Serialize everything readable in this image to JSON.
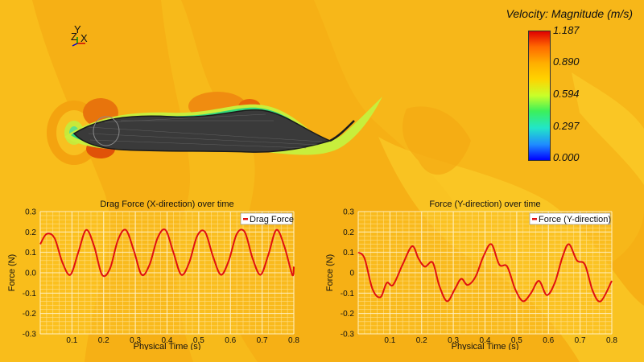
{
  "legend": {
    "title": "Velocity: Magnitude (m/s)",
    "ticks": [
      "1.187",
      "0.890",
      "0.594",
      "0.297",
      "0.000"
    ]
  },
  "axis_triad": {
    "labels": [
      "Y",
      "Z",
      "X"
    ]
  },
  "chart_data": [
    {
      "type": "line",
      "title": "Drag Force (X-direction) over time",
      "xlabel": "Physical Time (s)",
      "ylabel": "Force (N)",
      "xlim": [
        0,
        0.8
      ],
      "ylim": [
        -0.3,
        0.3
      ],
      "xticks": [
        "0.1",
        "0.2",
        "0.3",
        "0.4",
        "0.5",
        "0.6",
        "0.7",
        "0.8"
      ],
      "yticks": [
        "0.3",
        "0.2",
        "0.1",
        "0.0",
        "-0.1",
        "-0.2",
        "-0.3"
      ],
      "legend_position": "top-right",
      "grid": true,
      "series": [
        {
          "name": "Drag Force",
          "color": "#e01010",
          "x": [
            0.0,
            0.02,
            0.045,
            0.07,
            0.095,
            0.12,
            0.145,
            0.17,
            0.195,
            0.22,
            0.245,
            0.27,
            0.295,
            0.32,
            0.345,
            0.37,
            0.395,
            0.42,
            0.445,
            0.47,
            0.495,
            0.52,
            0.545,
            0.57,
            0.595,
            0.62,
            0.645,
            0.67,
            0.695,
            0.72,
            0.745,
            0.77,
            0.795,
            0.8
          ],
          "y": [
            0.14,
            0.19,
            0.17,
            0.05,
            -0.01,
            0.1,
            0.21,
            0.13,
            -0.01,
            0.02,
            0.16,
            0.21,
            0.11,
            -0.01,
            0.04,
            0.17,
            0.21,
            0.1,
            -0.01,
            0.05,
            0.18,
            0.2,
            0.08,
            -0.01,
            0.06,
            0.19,
            0.2,
            0.07,
            -0.01,
            0.09,
            0.21,
            0.13,
            -0.01,
            0.03
          ]
        }
      ]
    },
    {
      "type": "line",
      "title": "Force (Y-direction) over time",
      "xlabel": "Physical Time (s)",
      "ylabel": "Force (N)",
      "xlim": [
        0,
        0.8
      ],
      "ylim": [
        -0.3,
        0.3
      ],
      "xticks": [
        "0.1",
        "0.2",
        "0.3",
        "0.4",
        "0.5",
        "0.6",
        "0.7",
        "0.8"
      ],
      "yticks": [
        "0.3",
        "0.2",
        "0.1",
        "0",
        "-0.1",
        "-0.2",
        "-0.3"
      ],
      "legend_position": "top-right",
      "grid": true,
      "series": [
        {
          "name": "Force (Y-direction)",
          "color": "#e01010",
          "x": [
            0.0,
            0.02,
            0.045,
            0.07,
            0.09,
            0.11,
            0.14,
            0.17,
            0.19,
            0.21,
            0.235,
            0.255,
            0.28,
            0.305,
            0.325,
            0.345,
            0.37,
            0.395,
            0.42,
            0.445,
            0.47,
            0.495,
            0.52,
            0.545,
            0.57,
            0.595,
            0.62,
            0.645,
            0.665,
            0.69,
            0.715,
            0.74,
            0.765,
            0.8
          ],
          "y": [
            0.1,
            0.07,
            -0.08,
            -0.12,
            -0.05,
            -0.06,
            0.04,
            0.13,
            0.07,
            0.03,
            0.05,
            -0.06,
            -0.14,
            -0.08,
            -0.03,
            -0.06,
            -0.02,
            0.08,
            0.14,
            0.04,
            0.03,
            -0.08,
            -0.14,
            -0.1,
            -0.04,
            -0.11,
            -0.05,
            0.08,
            0.14,
            0.06,
            0.04,
            -0.09,
            -0.14,
            -0.04
          ]
        }
      ]
    }
  ]
}
